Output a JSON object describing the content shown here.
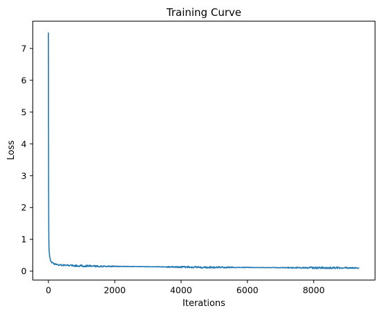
{
  "chart_data": {
    "type": "line",
    "title": "Training Curve",
    "xlabel": "Iterations",
    "ylabel": "Loss",
    "xlim": [
      -470,
      9850
    ],
    "ylim": [
      -0.28,
      7.86
    ],
    "xticks": [
      0,
      2000,
      4000,
      6000,
      8000
    ],
    "yticks": [
      0,
      1,
      2,
      3,
      4,
      5,
      6,
      7
    ],
    "grid": false,
    "line_color": "#1f77b4",
    "series": [
      {
        "points": [
          [
            0,
            7.5
          ],
          [
            2,
            6.5
          ],
          [
            4,
            4.6
          ],
          [
            6,
            2.9
          ],
          [
            8,
            1.8
          ],
          [
            10,
            1.25
          ],
          [
            13,
            0.95
          ],
          [
            16,
            0.8
          ],
          [
            20,
            0.68
          ],
          [
            25,
            0.6
          ],
          [
            30,
            0.52
          ],
          [
            40,
            0.45
          ],
          [
            50,
            0.4
          ],
          [
            65,
            0.34
          ],
          [
            80,
            0.3
          ],
          [
            100,
            0.27
          ],
          [
            150,
            0.24
          ],
          [
            200,
            0.22
          ],
          [
            300,
            0.2
          ],
          [
            400,
            0.19
          ],
          [
            600,
            0.18
          ],
          [
            800,
            0.17
          ],
          [
            1000,
            0.165
          ],
          [
            1500,
            0.155
          ],
          [
            2000,
            0.15
          ],
          [
            2500,
            0.145
          ],
          [
            3000,
            0.14
          ],
          [
            3500,
            0.135
          ],
          [
            4000,
            0.13
          ],
          [
            5000,
            0.12
          ],
          [
            6000,
            0.115
          ],
          [
            7000,
            0.11
          ],
          [
            8000,
            0.105
          ],
          [
            9000,
            0.102
          ],
          [
            9370,
            0.1
          ]
        ]
      }
    ]
  }
}
